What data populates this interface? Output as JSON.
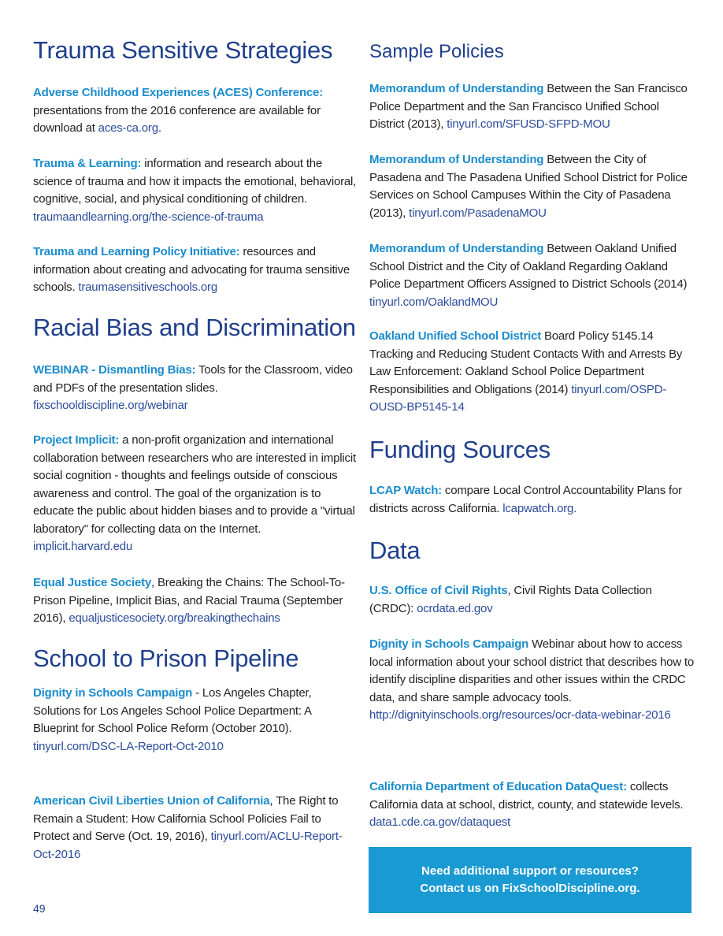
{
  "left": {
    "headings": [
      "Trauma Sensitive Strategies",
      "Racial Bias and Discrimination",
      "School to Prison Pipeline"
    ],
    "entries": [
      [
        {
          "s": "label",
          "t": "Adverse Childhood Experiences (ACES) Conference:"
        },
        {
          "s": "text",
          "t": " presentations from the 2016 conference are available for download at "
        },
        {
          "s": "link",
          "t": "aces-ca.org"
        },
        {
          "s": "text",
          "t": "."
        }
      ],
      [
        {
          "s": "label",
          "t": "Trauma & Learning:"
        },
        {
          "s": "text",
          "t": " information and research about the science of trauma and how it impacts the emotional, behavioral, cognitive, social, and physical conditioning of children. "
        },
        {
          "s": "link",
          "t": "traumaandlearning.org/the-science-of-trauma"
        }
      ],
      [
        {
          "s": "label",
          "t": "Trauma and Learning Policy Initiative:"
        },
        {
          "s": "text",
          "t": " resources and information about creating and advocating for trauma sensitive schools. "
        },
        {
          "s": "link",
          "t": "traumasensitiveschools.org"
        }
      ],
      [
        {
          "s": "label",
          "t": "WEBINAR - Dismantling Bias:"
        },
        {
          "s": "text",
          "t": " Tools for the Classroom, video and PDFs of the presentation slides. "
        },
        {
          "s": "link",
          "t": "fixschooldiscipline.org/webinar"
        }
      ],
      [
        {
          "s": "label",
          "t": "Project Implicit:"
        },
        {
          "s": "text",
          "t": " a non-profit organization and international collaboration between researchers who are interested in implicit social cognition - thoughts and feelings outside of conscious awareness and control. The goal of the organization is to educate the public about hidden biases and to provide a \"virtual laboratory\" for collecting data on the Internet. "
        },
        {
          "s": "link",
          "t": "implicit.harvard.edu"
        }
      ],
      [
        {
          "s": "label",
          "t": "Equal Justice Society"
        },
        {
          "s": "text",
          "t": ", Breaking the Chains: The School-To-Prison Pipeline, Implicit Bias, and Racial Trauma (September 2016), "
        },
        {
          "s": "link",
          "t": "equaljusticesociety.org/breakingthechains"
        }
      ],
      [
        {
          "s": "label",
          "t": "Dignity in Schools Campaign"
        },
        {
          "s": "text",
          "t": " - Los Angeles Chapter, Solutions for Los Angeles School Police Department: A Blueprint for School Police Reform (October 2010). "
        },
        {
          "s": "link",
          "t": "tinyurl.com/DSC-LA-Report-Oct-2010"
        }
      ],
      [
        {
          "s": "label",
          "t": "American Civil Liberties Union of California"
        },
        {
          "s": "text",
          "t": ", The Right to Remain a Student: How California School Policies Fail to Protect and Serve (Oct. 19, 2016), "
        },
        {
          "s": "link",
          "t": "tinyurl.com/ACLU-Report-Oct-2016"
        }
      ]
    ]
  },
  "right": {
    "headings": [
      "Sample Policies",
      "Funding Sources",
      "Data"
    ],
    "entries": [
      [
        {
          "s": "label",
          "t": "Memorandum of Understanding"
        },
        {
          "s": "text",
          "t": " Between the San Francisco Police Department and the San Francisco Unified School District (2013), "
        },
        {
          "s": "link",
          "t": "tinyurl.com/SFUSD-SFPD-MOU"
        }
      ],
      [
        {
          "s": "label",
          "t": "Memorandum of Understanding"
        },
        {
          "s": "text",
          "t": " Between the City of Pasadena and The Pasadena Unified School District for Police Services on School Campuses Within the City of Pasadena (2013), "
        },
        {
          "s": "link",
          "t": "tinyurl.com/PasadenaMOU"
        }
      ],
      [
        {
          "s": "label",
          "t": "Memorandum of Understanding"
        },
        {
          "s": "text",
          "t": " Between Oakland Unified School District and the City of Oakland Regarding Oakland Police Department Officers Assigned to District Schools (2014) "
        },
        {
          "s": "link",
          "t": "tinyurl.com/OaklandMOU"
        }
      ],
      [
        {
          "s": "label",
          "t": "Oakland Unified School District"
        },
        {
          "s": "text",
          "t": " Board Policy 5145.14 Tracking and Reducing Student Contacts With and Arrests By Law Enforcement: Oakland School Police Department Responsibilities and Obligations (2014) "
        },
        {
          "s": "link",
          "t": "tinyurl.com/OSPD-OUSD-BP5145-14"
        }
      ],
      [
        {
          "s": "label",
          "t": "LCAP Watch:"
        },
        {
          "s": "text",
          "t": " compare Local Control Accountability Plans for districts across California.  "
        },
        {
          "s": "link",
          "t": "lcapwatch.org."
        }
      ],
      [
        {
          "s": "label",
          "t": "U.S. Office of Civil Rights"
        },
        {
          "s": "text",
          "t": ", Civil Rights Data Collection (CRDC): "
        },
        {
          "s": "link",
          "t": "ocrdata.ed.gov"
        }
      ],
      [
        {
          "s": "label",
          "t": "Dignity in Schools Campaign"
        },
        {
          "s": "text",
          "t": " Webinar about how to access local information about your school district that describes how to identify discipline disparities and other issues within the CRDC data, and share sample advocacy tools. "
        },
        {
          "s": "link",
          "t": "http://dignityinschools.org/resources/ocr-data-webinar-2016"
        }
      ],
      [
        {
          "s": "label",
          "t": "California Department of Education DataQuest:"
        },
        {
          "s": "text",
          "t": " collects California data at school, district, county, and statewide levels. "
        },
        {
          "s": "link",
          "t": "data1.cde.ca.gov/dataquest"
        }
      ]
    ]
  },
  "callout": {
    "line1": "Need additional support or resources?",
    "line2": "Contact us on FixSchoolDiscipline.org."
  },
  "page_number": "49",
  "colors": {
    "heading": "#1f3f8c",
    "label": "#1b8ccc",
    "link": "#2b4b9b",
    "callout_bg": "#1a9ad2"
  }
}
